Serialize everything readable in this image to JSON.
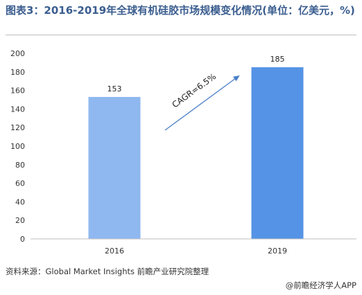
{
  "title": "图表3：2016-2019年全球有机硅胶市场规模变化情况(单位：亿美元，%)",
  "source": "资料来源：Global Market Insights 前瞻产业研究院整理",
  "brand": "@前瞻经济学人APP",
  "chart_data": {
    "type": "bar",
    "categories": [
      "2016",
      "2019"
    ],
    "values": [
      153,
      185
    ],
    "ylim": [
      0,
      200
    ],
    "yticks": [
      0,
      20,
      40,
      60,
      80,
      100,
      120,
      140,
      160,
      180,
      200
    ],
    "grid": false,
    "annotation": "CAGR=6.5%",
    "bar_colors": [
      "#8fb8f0",
      "#5593e6"
    ]
  }
}
